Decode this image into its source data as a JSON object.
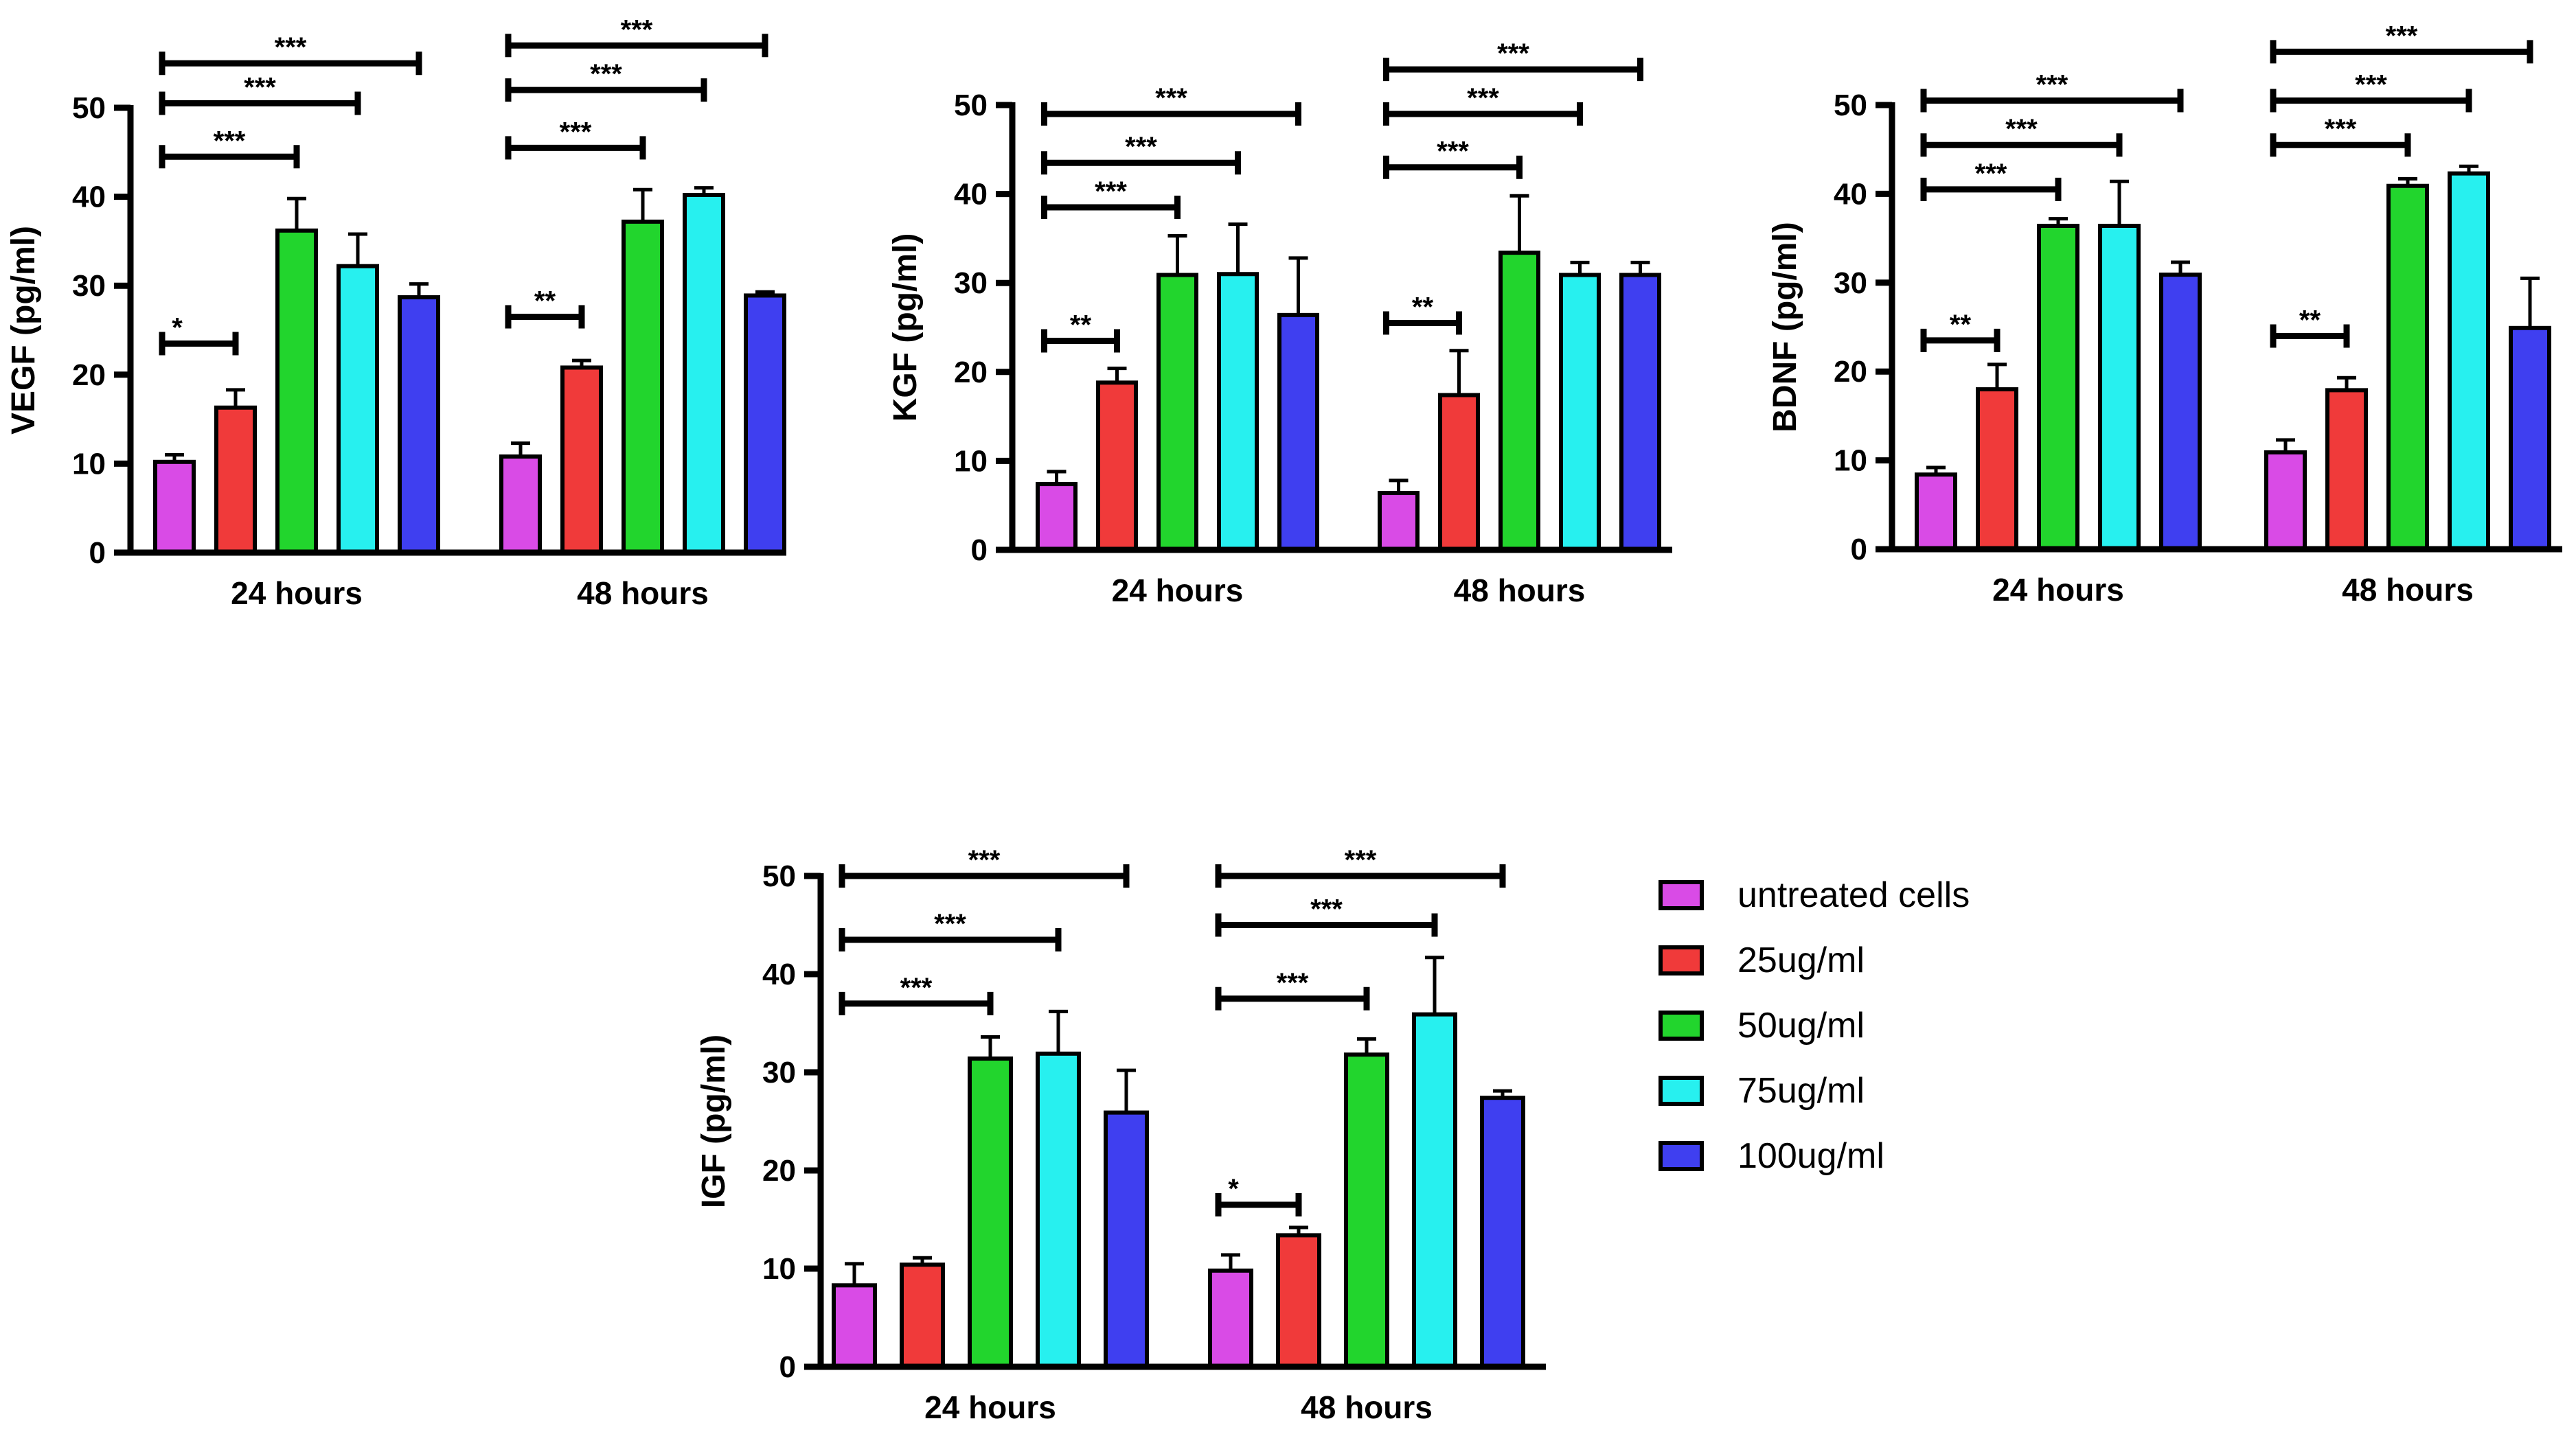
{
  "legend": [
    {
      "label": "untreated cells",
      "color": "#d94be6"
    },
    {
      "label": "25ug/ml",
      "color": "#f03a3a"
    },
    {
      "label": "50ug/ml",
      "color": "#22d52d"
    },
    {
      "label": "75ug/ml",
      "color": "#27f0ef"
    },
    {
      "label": "100ug/ml",
      "color": "#3f3ff0"
    }
  ],
  "chart_data": [
    {
      "type": "bar",
      "title": "VEGF",
      "ylabel": "VEGF (pg/ml)",
      "categories": [
        "24 hours",
        "48 hours"
      ],
      "ylim": [
        0,
        50
      ],
      "yticks": [
        0,
        10,
        20,
        30,
        40,
        50
      ],
      "series": [
        {
          "name": "untreated cells",
          "values": [
            10.2,
            10.8
          ],
          "errors": [
            0.8,
            1.5
          ]
        },
        {
          "name": "25ug/ml",
          "values": [
            16.3,
            20.8
          ],
          "errors": [
            2.0,
            0.8
          ]
        },
        {
          "name": "50ug/ml",
          "values": [
            36.2,
            37.2
          ],
          "errors": [
            3.6,
            3.6
          ]
        },
        {
          "name": "75ug/ml",
          "values": [
            32.2,
            40.2
          ],
          "errors": [
            3.6,
            0.8
          ]
        },
        {
          "name": "100ug/ml",
          "values": [
            28.7,
            28.9
          ],
          "errors": [
            1.5,
            0.4
          ]
        }
      ],
      "significance": [
        {
          "group": 0,
          "from": 0,
          "to": 1,
          "y": 23.5,
          "label": "*"
        },
        {
          "group": 0,
          "from": 0,
          "to": 2,
          "y": 44.5,
          "label": "***"
        },
        {
          "group": 0,
          "from": 0,
          "to": 3,
          "y": 50.5,
          "label": "***"
        },
        {
          "group": 0,
          "from": 0,
          "to": 4,
          "y": 55.0,
          "label": "***"
        },
        {
          "group": 1,
          "from": 0,
          "to": 1,
          "y": 26.5,
          "label": "**"
        },
        {
          "group": 1,
          "from": 0,
          "to": 2,
          "y": 45.5,
          "label": "***"
        },
        {
          "group": 1,
          "from": 0,
          "to": 3,
          "y": 52.0,
          "label": "***"
        },
        {
          "group": 1,
          "from": 0,
          "to": 4,
          "y": 57.0,
          "label": "***"
        }
      ]
    },
    {
      "type": "bar",
      "title": "KGF",
      "ylabel": "KGF (pg/ml)",
      "categories": [
        "24 hours",
        "48 hours"
      ],
      "ylim": [
        0,
        50
      ],
      "yticks": [
        0,
        10,
        20,
        30,
        40,
        50
      ],
      "series": [
        {
          "name": "untreated cells",
          "values": [
            7.4,
            6.4
          ],
          "errors": [
            1.4,
            1.4
          ]
        },
        {
          "name": "25ug/ml",
          "values": [
            18.8,
            17.4
          ],
          "errors": [
            1.6,
            5.0
          ]
        },
        {
          "name": "50ug/ml",
          "values": [
            30.9,
            33.4
          ],
          "errors": [
            4.4,
            6.4
          ]
        },
        {
          "name": "75ug/ml",
          "values": [
            31.0,
            30.9
          ],
          "errors": [
            5.6,
            1.4
          ]
        },
        {
          "name": "100ug/ml",
          "values": [
            26.4,
            30.9
          ],
          "errors": [
            6.4,
            1.4
          ]
        }
      ],
      "significance": [
        {
          "group": 0,
          "from": 0,
          "to": 1,
          "y": 23.5,
          "label": "**"
        },
        {
          "group": 0,
          "from": 0,
          "to": 2,
          "y": 38.5,
          "label": "***"
        },
        {
          "group": 0,
          "from": 0,
          "to": 3,
          "y": 43.5,
          "label": "***"
        },
        {
          "group": 0,
          "from": 0,
          "to": 4,
          "y": 49.0,
          "label": "***"
        },
        {
          "group": 1,
          "from": 0,
          "to": 1,
          "y": 25.5,
          "label": "**"
        },
        {
          "group": 1,
          "from": 0,
          "to": 2,
          "y": 43.0,
          "label": "***"
        },
        {
          "group": 1,
          "from": 0,
          "to": 3,
          "y": 49.0,
          "label": "***"
        },
        {
          "group": 1,
          "from": 0,
          "to": 4,
          "y": 54.0,
          "label": "***"
        }
      ]
    },
    {
      "type": "bar",
      "title": "BDNF",
      "ylabel": "BDNF (pg/ml)",
      "categories": [
        "24 hours",
        "48 hours"
      ],
      "ylim": [
        0,
        50
      ],
      "yticks": [
        0,
        10,
        20,
        30,
        40,
        50
      ],
      "series": [
        {
          "name": "untreated cells",
          "values": [
            8.4,
            10.9
          ],
          "errors": [
            0.8,
            1.4
          ]
        },
        {
          "name": "25ug/ml",
          "values": [
            18.0,
            17.9
          ],
          "errors": [
            2.8,
            1.4
          ]
        },
        {
          "name": "50ug/ml",
          "values": [
            36.4,
            40.9
          ],
          "errors": [
            0.8,
            0.8
          ]
        },
        {
          "name": "75ug/ml",
          "values": [
            36.4,
            42.3
          ],
          "errors": [
            5.0,
            0.8
          ]
        },
        {
          "name": "100ug/ml",
          "values": [
            30.9,
            24.9
          ],
          "errors": [
            1.4,
            5.6
          ]
        }
      ],
      "significance": [
        {
          "group": 0,
          "from": 0,
          "to": 1,
          "y": 23.5,
          "label": "**"
        },
        {
          "group": 0,
          "from": 0,
          "to": 2,
          "y": 40.5,
          "label": "***"
        },
        {
          "group": 0,
          "from": 0,
          "to": 3,
          "y": 45.5,
          "label": "***"
        },
        {
          "group": 0,
          "from": 0,
          "to": 4,
          "y": 50.5,
          "label": "***"
        },
        {
          "group": 1,
          "from": 0,
          "to": 1,
          "y": 24.0,
          "label": "**"
        },
        {
          "group": 1,
          "from": 0,
          "to": 2,
          "y": 45.5,
          "label": "***"
        },
        {
          "group": 1,
          "from": 0,
          "to": 3,
          "y": 50.5,
          "label": "***"
        },
        {
          "group": 1,
          "from": 0,
          "to": 4,
          "y": 56.0,
          "label": "***"
        }
      ]
    },
    {
      "type": "bar",
      "title": "IGF",
      "ylabel": "IGF (pg/ml)",
      "categories": [
        "24 hours",
        "48 hours"
      ],
      "ylim": [
        0,
        50
      ],
      "yticks": [
        0,
        10,
        20,
        30,
        40,
        50
      ],
      "series": [
        {
          "name": "untreated cells",
          "values": [
            8.3,
            9.8
          ],
          "errors": [
            2.2,
            1.6
          ]
        },
        {
          "name": "25ug/ml",
          "values": [
            10.4,
            13.4
          ],
          "errors": [
            0.7,
            0.8
          ]
        },
        {
          "name": "50ug/ml",
          "values": [
            31.4,
            31.8
          ],
          "errors": [
            2.2,
            1.6
          ]
        },
        {
          "name": "75ug/ml",
          "values": [
            31.9,
            35.9
          ],
          "errors": [
            4.3,
            5.8
          ]
        },
        {
          "name": "100ug/ml",
          "values": [
            25.9,
            27.4
          ],
          "errors": [
            4.3,
            0.7
          ]
        }
      ],
      "significance": [
        {
          "group": 0,
          "from": 0,
          "to": 2,
          "y": 37.0,
          "label": "***"
        },
        {
          "group": 0,
          "from": 0,
          "to": 3,
          "y": 43.5,
          "label": "***"
        },
        {
          "group": 0,
          "from": 0,
          "to": 4,
          "y": 50.0,
          "label": "***"
        },
        {
          "group": 1,
          "from": 0,
          "to": 1,
          "y": 16.5,
          "label": "*"
        },
        {
          "group": 1,
          "from": 0,
          "to": 2,
          "y": 37.5,
          "label": "***"
        },
        {
          "group": 1,
          "from": 0,
          "to": 3,
          "y": 45.0,
          "label": "***"
        },
        {
          "group": 1,
          "from": 0,
          "to": 4,
          "y": 50.0,
          "label": "***"
        }
      ]
    }
  ]
}
